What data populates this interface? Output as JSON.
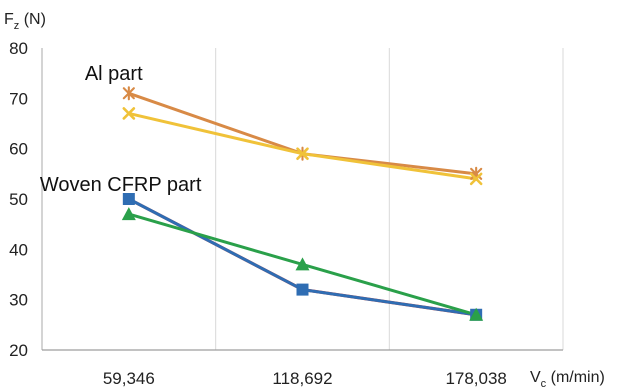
{
  "chart_data": {
    "type": "line",
    "title": "",
    "xlabel": {
      "base": "V",
      "sub": "c",
      "unit": " (m/min)"
    },
    "ylabel": {
      "base": "F",
      "sub": "z",
      "unit": " (N)"
    },
    "categories": [
      "59,346",
      "118,692",
      "178,038"
    ],
    "ylim": [
      20,
      80
    ],
    "yticks": [
      20,
      30,
      40,
      50,
      60,
      70,
      80
    ],
    "grid": {
      "vertical": true,
      "horizontal": false
    },
    "series": [
      {
        "values": [
          71,
          59,
          55
        ],
        "color": "#d88a46",
        "marker": "star"
      },
      {
        "values": [
          67,
          59,
          54
        ],
        "color": "#f0c239",
        "marker": "cross"
      },
      {
        "values": [
          50,
          32,
          27
        ],
        "color": "#2f6db3",
        "marker": "square"
      },
      {
        "values": [
          47,
          37,
          27
        ],
        "color": "#2aa04a",
        "marker": "triangle"
      },
      {
        "values": [
          50,
          32,
          27
        ],
        "color": "#cc3c2c",
        "marker": "none"
      }
    ],
    "annotations": [
      {
        "text": "Al part",
        "x": "59,346",
        "y": 75
      },
      {
        "text": "Woven CFRP part",
        "x": "59,346",
        "y": 53
      }
    ]
  }
}
